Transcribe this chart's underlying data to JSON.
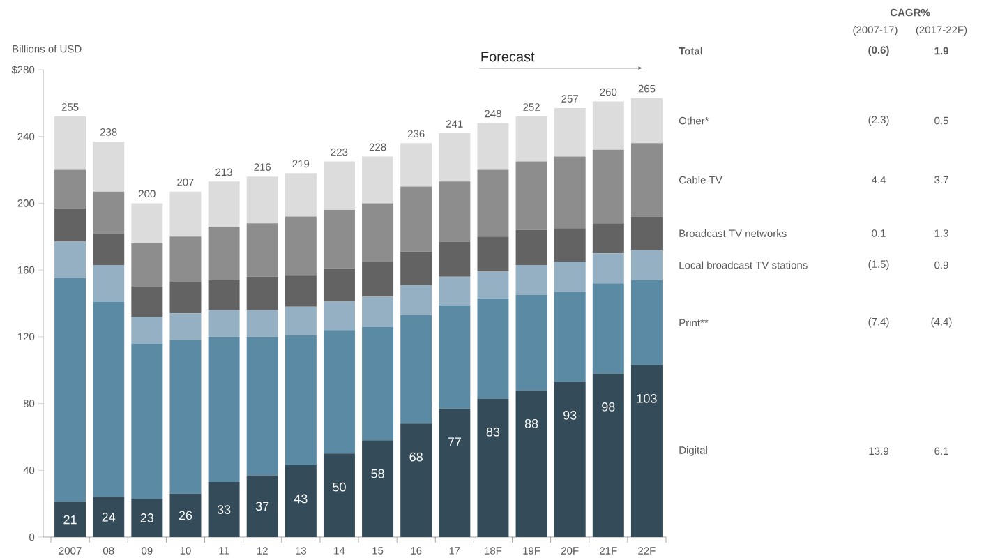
{
  "chart_data": {
    "type": "bar",
    "stacked": true,
    "ylabel": "Billions of USD",
    "categories": [
      "2007",
      "08",
      "09",
      "10",
      "11",
      "12",
      "13",
      "14",
      "15",
      "16",
      "17",
      "18F",
      "19F",
      "20F",
      "21F",
      "22F"
    ],
    "ylim": [
      0,
      280
    ],
    "yticks": [
      0,
      40,
      80,
      120,
      160,
      200,
      240,
      {
        "value": 280,
        "label": "$280"
      }
    ],
    "series": [
      {
        "name": "Digital",
        "color": "#344b5a",
        "values": [
          21,
          24,
          23,
          26,
          33,
          37,
          43,
          50,
          58,
          68,
          77,
          83,
          88,
          93,
          98,
          103
        ],
        "value_labels": [
          "21",
          "24",
          "23",
          "26",
          "33",
          "37",
          "43",
          "50",
          "58",
          "68",
          "77",
          "83",
          "88",
          "93",
          "98",
          "103"
        ]
      },
      {
        "name": "Print**",
        "color": "#5b8aa4",
        "values": [
          134,
          117,
          93,
          92,
          87,
          83,
          78,
          74,
          68,
          65,
          62,
          60,
          57,
          54,
          54,
          51
        ]
      },
      {
        "name": "Local broadcast TV stations",
        "color": "#94b0c2",
        "values": [
          22,
          22,
          16,
          16,
          16,
          16,
          17,
          17,
          18,
          18,
          17,
          16,
          18,
          18,
          18,
          18
        ]
      },
      {
        "name": "Broadcast TV networks",
        "color": "#636363",
        "values": [
          20,
          19,
          18,
          19,
          18,
          20,
          19,
          20,
          21,
          20,
          21,
          21,
          21,
          20,
          18,
          20
        ]
      },
      {
        "name": "Cable TV",
        "color": "#8d8d8d",
        "values": [
          23,
          25,
          26,
          27,
          32,
          32,
          35,
          35,
          35,
          39,
          36,
          40,
          41,
          43,
          44,
          44
        ]
      },
      {
        "name": "Other*",
        "color": "#dcdcdc",
        "values": [
          32,
          30,
          24,
          27,
          27,
          28,
          26,
          29,
          28,
          26,
          29,
          28,
          27,
          29,
          29,
          27
        ]
      }
    ],
    "totals": [
      "255",
      "238",
      "200",
      "207",
      "213",
      "216",
      "219",
      "223",
      "228",
      "236",
      "241",
      "248",
      "252",
      "257",
      "260",
      "265"
    ],
    "annotations": [
      "Forecast",
      "CAGR%",
      "(2007-17)",
      "(2017-22F)",
      "Total",
      "(0.6)",
      "1.9",
      "13.9",
      "6.1",
      "(7.4)",
      "(4.4)",
      "(1.5)",
      "0.9",
      "0.1",
      "1.3",
      "4.4",
      "3.7",
      "(2.3)",
      "0.5"
    ]
  }
}
